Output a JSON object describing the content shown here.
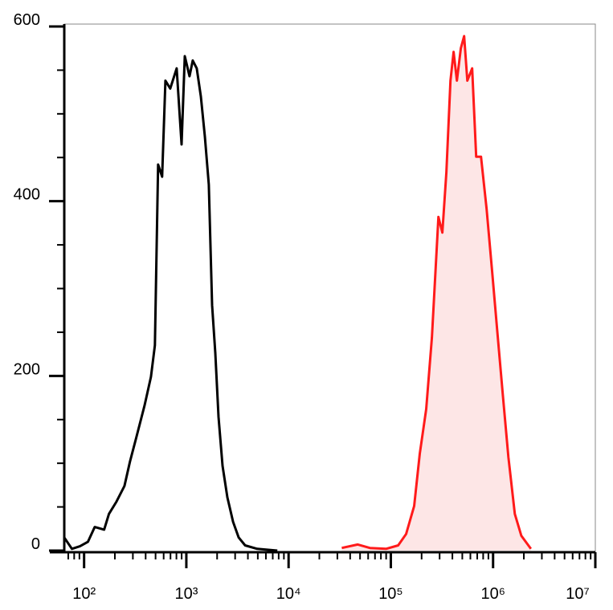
{
  "chart_data": {
    "type": "histogram-line",
    "xscale": "log",
    "xlim": [
      64,
      10000000
    ],
    "ylim": [
      0,
      600
    ],
    "yticks": [
      0,
      200,
      400,
      600
    ],
    "yminorticks": [
      50,
      100,
      150,
      250,
      300,
      350,
      450,
      500,
      550
    ],
    "xticks": [
      {
        "value": 100,
        "label": "10²"
      },
      {
        "value": 1000,
        "label": "10³"
      },
      {
        "value": 10000,
        "label": "10⁴"
      },
      {
        "value": 100000,
        "label": "10⁵"
      },
      {
        "value": 1000000,
        "label": "10⁶"
      },
      {
        "value": 10000000,
        "label": "10⁷"
      }
    ],
    "series": [
      {
        "color": "#000000",
        "x": [
          64,
          76,
          91,
          109,
          127,
          157,
          175,
          207,
          248,
          281,
          325,
          390,
          451,
          493,
          530,
          580,
          624,
          696,
          805,
          898,
          965,
          1075,
          1155,
          1265,
          1387,
          1518,
          1660,
          1786,
          1920,
          2065,
          2260,
          2520,
          2865,
          3250,
          3760,
          4930,
          7760
        ],
        "values": [
          15,
          2,
          5,
          10,
          27,
          24,
          42,
          56,
          74,
          102,
          130,
          166,
          199,
          235,
          442,
          428,
          538,
          529,
          552,
          465,
          566,
          543,
          561,
          552,
          520,
          474,
          419,
          281,
          226,
          153,
          97,
          61,
          33,
          15,
          6,
          2,
          0
        ]
      },
      {
        "color": "#ff1a1a",
        "fill": "#fde6e6",
        "x": [
          33100,
          47500,
          62400,
          89800,
          118000,
          141000,
          169000,
          192000,
          222000,
          252000,
          292000,
          319000,
          349000,
          383000,
          411000,
          443000,
          484000,
          521000,
          560000,
          624000,
          684000,
          762000,
          865000,
          982000,
          1094000,
          1242000,
          1413000,
          1633000,
          1888000,
          2344000
        ],
        "values": [
          3,
          7,
          3,
          2,
          6,
          19,
          51,
          111,
          162,
          244,
          382,
          364,
          433,
          538,
          571,
          538,
          575,
          589,
          538,
          552,
          451,
          451,
          391,
          318,
          254,
          180,
          107,
          42,
          17,
          2
        ]
      }
    ]
  }
}
